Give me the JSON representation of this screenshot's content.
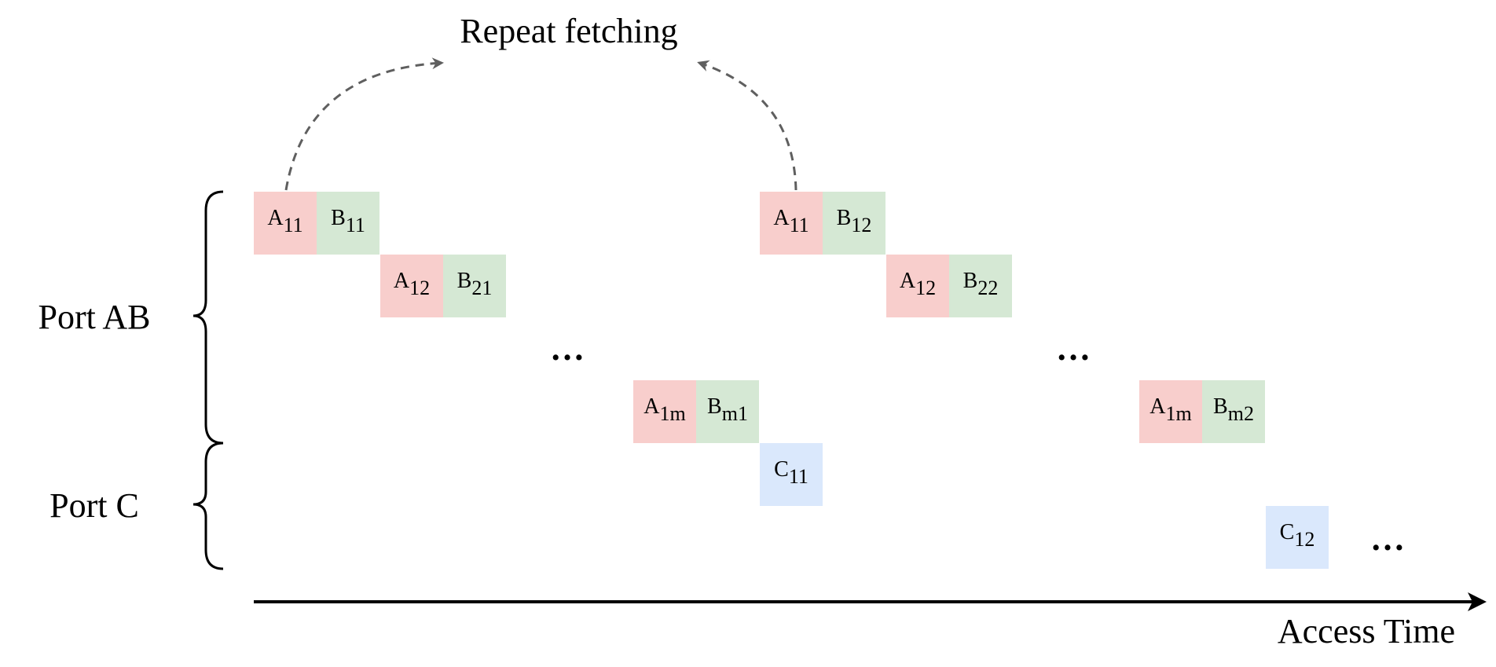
{
  "title": "Repeat fetching",
  "ports": [
    {
      "id": "ab",
      "label": "Port AB"
    },
    {
      "id": "c",
      "label": "Port C"
    }
  ],
  "axis_label": "Access Time",
  "ellipsis": "…",
  "blocks": [
    {
      "kind": "A",
      "base": "A",
      "sub": "11"
    },
    {
      "kind": "B",
      "base": "B",
      "sub": "11"
    },
    {
      "kind": "A",
      "base": "A",
      "sub": "12"
    },
    {
      "kind": "B",
      "base": "B",
      "sub": "21"
    },
    {
      "kind": "A",
      "base": "A",
      "sub": "1m"
    },
    {
      "kind": "B",
      "base": "B",
      "sub": "m1"
    },
    {
      "kind": "C",
      "base": "C",
      "sub": "11"
    },
    {
      "kind": "A",
      "base": "A",
      "sub": "11"
    },
    {
      "kind": "B",
      "base": "B",
      "sub": "12"
    },
    {
      "kind": "A",
      "base": "A",
      "sub": "12"
    },
    {
      "kind": "B",
      "base": "B",
      "sub": "22"
    },
    {
      "kind": "A",
      "base": "A",
      "sub": "1m"
    },
    {
      "kind": "B",
      "base": "B",
      "sub": "m2"
    },
    {
      "kind": "C",
      "base": "C",
      "sub": "12"
    }
  ],
  "colors": {
    "A": "#f8cecc",
    "B": "#d5e8d4",
    "C": "#dae8fc",
    "arrow": "#5f5f5f",
    "axis": "#000000"
  }
}
